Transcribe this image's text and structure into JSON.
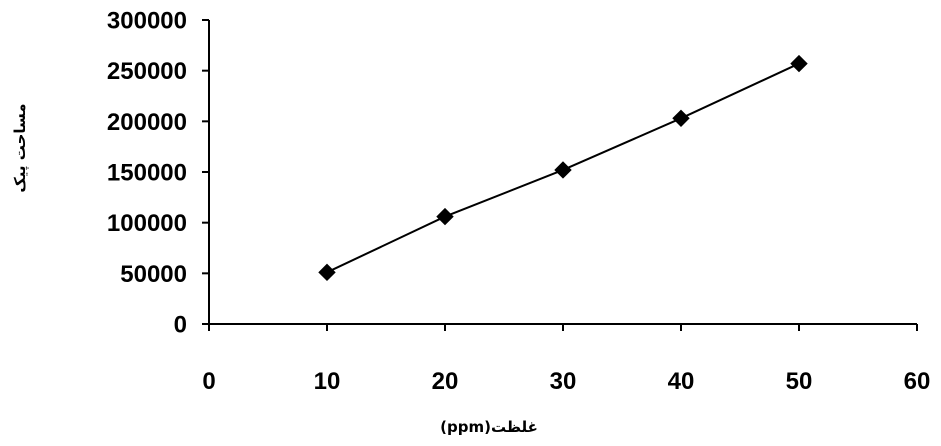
{
  "chart_data": {
    "type": "line",
    "title": "",
    "xlabel": "غلظت(ppm)",
    "ylabel": "مساحت پیک",
    "xlim": [
      0,
      60
    ],
    "ylim": [
      0,
      300000
    ],
    "x_ticks": [
      "0",
      "10",
      "20",
      "30",
      "40",
      "50",
      "60"
    ],
    "y_ticks": [
      "0",
      "50000",
      "100000",
      "150000",
      "200000",
      "250000",
      "300000"
    ],
    "grid": false,
    "legend": "none",
    "marker": "diamond",
    "colors": {
      "line": "#000000",
      "marker": "#000000"
    },
    "series": [
      {
        "x": [
          10,
          20,
          30,
          40,
          50
        ],
        "y": [
          51000,
          106000,
          152000,
          203000,
          257000
        ]
      }
    ]
  }
}
